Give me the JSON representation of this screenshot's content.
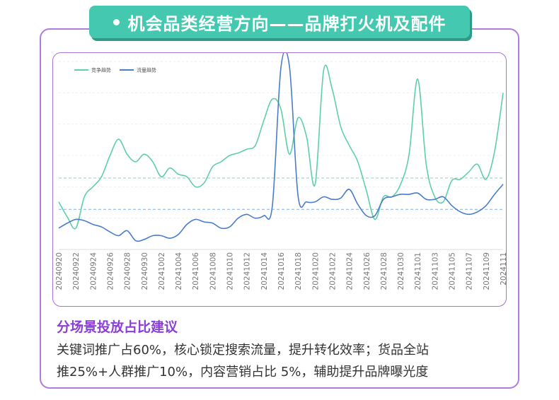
{
  "header": {
    "title": "机会品类经营方向——品牌打火机及配件"
  },
  "chart_data": {
    "type": "line",
    "x": [
      "20240920",
      "20240921",
      "20240922",
      "20240923",
      "20240924",
      "20240925",
      "20240926",
      "20240927",
      "20240928",
      "20240929",
      "20240930",
      "20241001",
      "20241002",
      "20241003",
      "20241004",
      "20241005",
      "20241006",
      "20241007",
      "20241008",
      "20241009",
      "20241010",
      "20241011",
      "20241012",
      "20241013",
      "20241014",
      "20241015",
      "20241016",
      "20241017",
      "20241018",
      "20241019",
      "20241020",
      "20241021",
      "20241022",
      "20241023",
      "20241024",
      "20241025",
      "20241026",
      "20241027",
      "20241028",
      "20241029",
      "20241030",
      "20241031",
      "20241101",
      "20241102",
      "20241103",
      "20241104",
      "20241105",
      "20241106",
      "20241107",
      "20241108",
      "20241109",
      "20241110",
      "20241111"
    ],
    "tick_labels": [
      "20240920",
      "20240922",
      "20240924",
      "20240926",
      "20240928",
      "20240930",
      "20241002",
      "20241004",
      "20241006",
      "20241008",
      "20241010",
      "20241012",
      "20241014",
      "20241016",
      "20241018",
      "20241020",
      "20241022",
      "20241024",
      "20241026",
      "20241028",
      "20241030",
      "20241101",
      "20241103",
      "20241105",
      "20241107",
      "20241109",
      "2024111"
    ],
    "series": [
      {
        "name": "竞争趋势",
        "color": "#5fcfa8",
        "values": [
          38,
          26,
          17,
          42,
          50,
          58,
          75,
          88,
          76,
          70,
          76,
          70,
          58,
          65,
          60,
          58,
          50,
          53,
          66,
          70,
          75,
          77,
          80,
          83,
          103,
          120,
          112,
          76,
          105,
          90,
          52,
          143,
          128,
          98,
          83,
          70,
          47,
          24,
          42,
          42,
          52,
          76,
          136,
          68,
          42,
          38,
          55,
          56,
          62,
          68,
          56,
          78,
          125
        ]
      },
      {
        "name": "流量趋势",
        "color": "#4a7cc9",
        "values": [
          17,
          21,
          24,
          23,
          20,
          18,
          14,
          11,
          15,
          7,
          8,
          11,
          11,
          9,
          12,
          20,
          24,
          22,
          21,
          17,
          18,
          25,
          28,
          25,
          27,
          35,
          145,
          146,
          43,
          38,
          38,
          42,
          40,
          41,
          48,
          36,
          27,
          27,
          40,
          42,
          44,
          44,
          45,
          40,
          40,
          42,
          35,
          30,
          28,
          30,
          35,
          44,
          52
        ]
      }
    ],
    "ylim": [
      0,
      150
    ],
    "reference_lines": [
      32,
      57
    ],
    "grid": true,
    "legend_position": "top-left"
  },
  "section": {
    "title": "分场景投放占比建议",
    "lines": [
      "关键词推广占60%，核心锁定搜索流量，提升转化效率；货品全站",
      "推25%+人群推广10%，内容营销占比 5%，辅助提升品牌曝光度"
    ]
  }
}
